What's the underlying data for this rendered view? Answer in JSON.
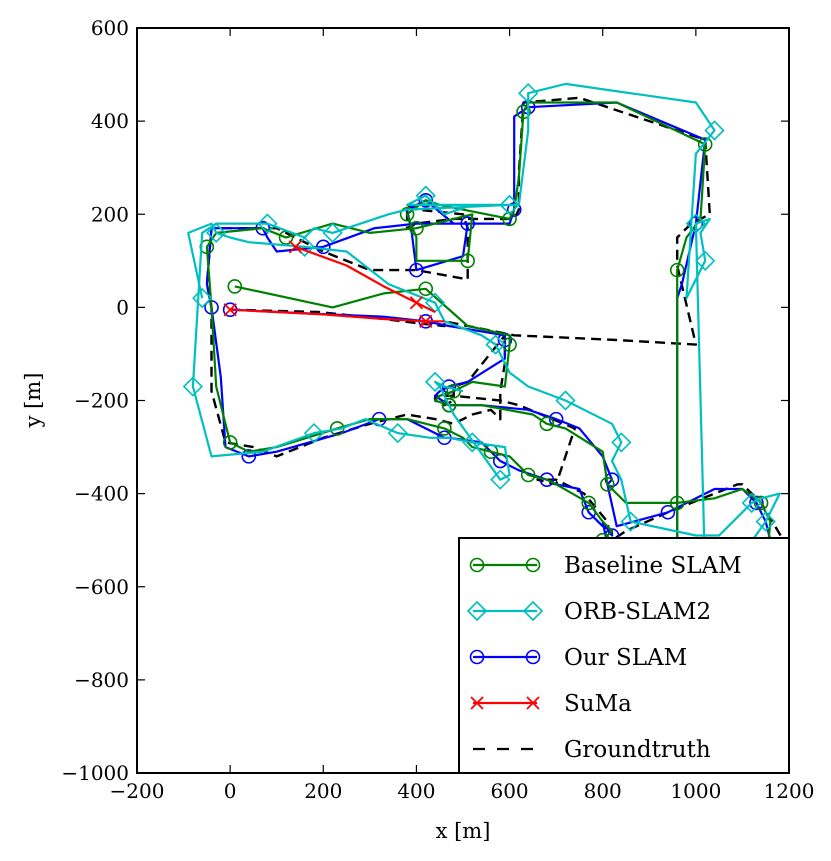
{
  "chart_data": {
    "type": "line",
    "title": "",
    "xlabel": "x [m]",
    "ylabel": "y [m]",
    "xlim": [
      -200,
      1200
    ],
    "ylim": [
      -1000,
      600
    ],
    "xticks": [
      -200,
      0,
      200,
      400,
      600,
      800,
      1000,
      1200
    ],
    "yticks": [
      -1000,
      -800,
      -600,
      -400,
      -200,
      0,
      200,
      400,
      600
    ],
    "xtick_labels": [
      "−200",
      "0",
      "200",
      "400",
      "600",
      "800",
      "1000",
      "1200"
    ],
    "ytick_labels": [
      "−1000",
      "−800",
      "−600",
      "−400",
      "−200",
      "0",
      "200",
      "400",
      "600"
    ],
    "grid": false,
    "legend_position": "bottom-right",
    "legend": [
      {
        "label": "Baseline SLAM",
        "color": "#008000",
        "marker": "circle",
        "dash": false
      },
      {
        "label": "ORB-SLAM2",
        "color": "#00bfbf",
        "marker": "diamond",
        "dash": false
      },
      {
        "label": "Our SLAM",
        "color": "#0000ff",
        "marker": "circle",
        "dash": false
      },
      {
        "label": "SuMa",
        "color": "#ff0000",
        "marker": "x",
        "dash": false
      },
      {
        "label": "Groundtruth",
        "color": "#000000",
        "marker": "none",
        "dash": true
      }
    ],
    "series": [
      {
        "name": "Groundtruth",
        "color": "#000000",
        "marker": "none",
        "dash": true,
        "x": [
          0,
          190,
          330,
          410,
          460,
          460,
          610,
          830,
          1000,
          1000,
          960,
          960,
          990,
          1030,
          1020,
          750,
          630,
          620,
          620,
          610,
          600,
          480,
          400,
          380,
          380,
          400,
          500,
          510,
          510,
          400,
          300,
          200,
          100,
          90,
          70,
          -40,
          -50,
          -40,
          -40,
          -10,
          50,
          100,
          200,
          300,
          380,
          440,
          480,
          520,
          560,
          580,
          580,
          590,
          590,
          510,
          480,
          480,
          460,
          440,
          440,
          480,
          580,
          620,
          740,
          700,
          660,
          700,
          760,
          810,
          820,
          820,
          810,
          800,
          820,
          850,
          940,
          1040,
          1090,
          1100,
          1140,
          1200
        ],
        "y": [
          -5,
          -10,
          -25,
          -35,
          -40,
          -30,
          -60,
          -70,
          -80,
          -80,
          90,
          150,
          180,
          200,
          360,
          450,
          440,
          290,
          210,
          190,
          190,
          190,
          180,
          170,
          220,
          210,
          200,
          170,
          60,
          80,
          80,
          120,
          170,
          170,
          170,
          170,
          50,
          0,
          -180,
          -290,
          -300,
          -320,
          -280,
          -250,
          -230,
          -240,
          -250,
          -230,
          -220,
          -240,
          -180,
          -120,
          -60,
          -160,
          -170,
          -200,
          -210,
          -200,
          -190,
          -190,
          -200,
          -210,
          -260,
          -380,
          -370,
          -370,
          -400,
          -460,
          -520,
          -520,
          -500,
          -540,
          -500,
          -480,
          -440,
          -400,
          -380,
          -380,
          -420,
          -520
        ]
      },
      {
        "name": "Our SLAM",
        "color": "#0000ff",
        "marker": "circle",
        "dash": false,
        "x": [
          0,
          210,
          330,
          420,
          470,
          590,
          590,
          590,
          510,
          470,
          450,
          440,
          470,
          540,
          640,
          700,
          750,
          800,
          820,
          810,
          830,
          940,
          1040,
          1100,
          1130,
          1150,
          1160,
          1150,
          1100,
          1050,
          960,
          960,
          970,
          1000,
          1020,
          830,
          640,
          610,
          610,
          610,
          600,
          480,
          420,
          380,
          390,
          400,
          500,
          510,
          510,
          400,
          310,
          200,
          100,
          80,
          70,
          -40,
          -50,
          -40,
          -20,
          -10,
          40,
          100,
          240,
          320,
          380,
          440,
          460,
          470,
          540,
          580,
          620,
          650,
          680,
          700,
          750,
          770,
          800,
          820,
          820,
          800,
          810,
          800,
          820
        ],
        "y": [
          -5,
          -15,
          -20,
          -30,
          -40,
          -60,
          -70,
          -110,
          -160,
          -170,
          -180,
          -190,
          -210,
          -210,
          -220,
          -240,
          -260,
          -320,
          -370,
          -380,
          -470,
          -440,
          -390,
          -390,
          -420,
          -460,
          -500,
          -560,
          -560,
          -560,
          -570,
          20,
          50,
          180,
          360,
          440,
          430,
          410,
          290,
          210,
          180,
          180,
          230,
          210,
          160,
          80,
          110,
          180,
          180,
          180,
          170,
          130,
          120,
          150,
          170,
          170,
          50,
          0,
          -150,
          -300,
          -320,
          -310,
          -270,
          -240,
          -240,
          -270,
          -280,
          -280,
          -290,
          -330,
          -350,
          -360,
          -370,
          -380,
          -390,
          -440,
          -470,
          -480,
          -490,
          -460,
          -510,
          -540,
          -510
        ]
      },
      {
        "name": "Baseline SLAM",
        "color": "#008000",
        "marker": "circle",
        "dash": false,
        "x": [
          10,
          220,
          330,
          420,
          510,
          600,
          600,
          590,
          520,
          480,
          450,
          440,
          470,
          540,
          650,
          680,
          720,
          800,
          810,
          820,
          850,
          960,
          1040,
          1100,
          1140,
          1160,
          1150,
          1100,
          1050,
          960,
          960,
          980,
          1010,
          1020,
          830,
          640,
          630,
          620,
          610,
          600,
          450,
          420,
          380,
          400,
          400,
          510,
          520,
          520,
          400,
          300,
          220,
          120,
          70,
          -30,
          -50,
          -40,
          -30,
          0,
          40,
          100,
          230,
          300,
          380,
          460,
          500,
          520,
          560,
          600,
          620,
          640,
          680,
          700,
          770,
          800,
          820,
          800
        ],
        "y": [
          45,
          0,
          30,
          40,
          -40,
          -60,
          -80,
          -170,
          -160,
          -180,
          -190,
          -200,
          -210,
          -210,
          -230,
          -250,
          -260,
          -310,
          -380,
          -390,
          -420,
          -420,
          -410,
          -390,
          -420,
          -460,
          -560,
          -560,
          -560,
          -570,
          80,
          150,
          190,
          350,
          440,
          440,
          420,
          280,
          210,
          190,
          220,
          230,
          200,
          150,
          100,
          100,
          200,
          200,
          170,
          160,
          180,
          150,
          170,
          160,
          130,
          0,
          -170,
          -290,
          -310,
          -300,
          -260,
          -240,
          -240,
          -260,
          -280,
          -300,
          -310,
          -320,
          -340,
          -360,
          -370,
          -380,
          -420,
          -460,
          -480,
          -500
        ]
      },
      {
        "name": "ORB-SLAM2",
        "color": "#00bfbf",
        "marker": "diamond",
        "dash": false,
        "x": [
          -60,
          -90,
          -40,
          -30,
          0,
          40,
          160,
          250,
          340,
          440,
          460,
          540,
          570,
          600,
          640,
          720,
          760,
          820,
          840,
          820,
          840,
          860,
          1000,
          1050,
          1120,
          1140,
          1180,
          1150,
          1100,
          1020,
          1000,
          1030,
          1010,
          1020,
          980,
          1000,
          1040,
          1000,
          720,
          640,
          640,
          620,
          600,
          470,
          380,
          420,
          460,
          520,
          600,
          380,
          340,
          220,
          180,
          160,
          80,
          -30,
          -60,
          -80,
          -40,
          70,
          180,
          240,
          290,
          360,
          430,
          470,
          520,
          590,
          600,
          580,
          480,
          450,
          440,
          460,
          500
        ],
        "y": [
          20,
          160,
          180,
          160,
          150,
          140,
          130,
          120,
          50,
          10,
          -30,
          -60,
          -80,
          -140,
          -170,
          -200,
          -220,
          -250,
          -290,
          -330,
          -370,
          -460,
          -490,
          -490,
          -420,
          -410,
          -400,
          -460,
          -530,
          -580,
          180,
          190,
          160,
          100,
          20,
          330,
          380,
          440,
          480,
          460,
          380,
          220,
          220,
          220,
          220,
          240,
          200,
          220,
          220,
          210,
          200,
          160,
          170,
          150,
          180,
          180,
          160,
          -170,
          -320,
          -310,
          -270,
          -260,
          -240,
          -270,
          -280,
          -280,
          -290,
          -300,
          -360,
          -370,
          -230,
          -170,
          -160,
          -170,
          -180
        ]
      },
      {
        "name": "SuMa",
        "color": "#ff0000",
        "marker": "x",
        "dash": false,
        "x": [
          0,
          200,
          330,
          420,
          460
        ],
        "y": [
          -5,
          -15,
          -25,
          -30,
          -30
        ],
        "x2": [
          140,
          250,
          330,
          400,
          440
        ],
        "y2": [
          130,
          90,
          45,
          10,
          -10
        ]
      }
    ]
  }
}
